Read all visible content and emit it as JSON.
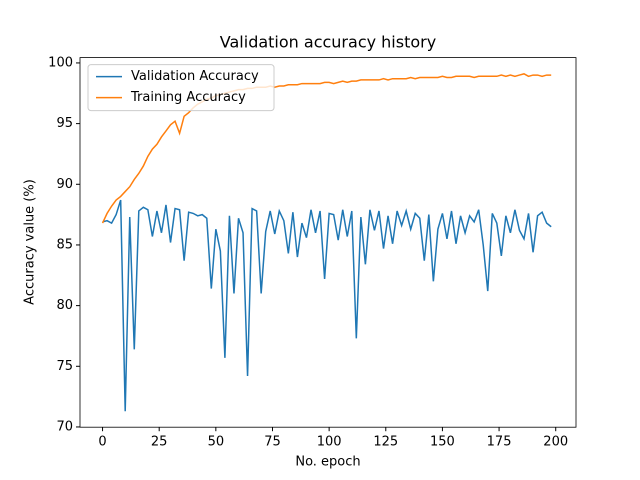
{
  "chart_data": {
    "type": "line",
    "title": "Validation accuracy history",
    "xlabel": "No. epoch",
    "ylabel": "Accuracy value (%)",
    "x": [
      0,
      2,
      4,
      6,
      8,
      10,
      12,
      14,
      16,
      18,
      20,
      22,
      24,
      26,
      28,
      30,
      32,
      34,
      36,
      38,
      40,
      42,
      44,
      46,
      48,
      50,
      52,
      54,
      56,
      58,
      60,
      62,
      64,
      66,
      68,
      70,
      72,
      74,
      76,
      78,
      80,
      82,
      84,
      86,
      88,
      90,
      92,
      94,
      96,
      98,
      100,
      102,
      104,
      106,
      108,
      110,
      112,
      114,
      116,
      118,
      120,
      122,
      124,
      126,
      128,
      130,
      132,
      134,
      136,
      138,
      140,
      142,
      144,
      146,
      148,
      150,
      152,
      154,
      156,
      158,
      160,
      162,
      164,
      166,
      168,
      170,
      172,
      174,
      176,
      178,
      180,
      182,
      184,
      186,
      188,
      190,
      192,
      194,
      196,
      198
    ],
    "series": [
      {
        "name": "Validation Accuracy",
        "color": "#1f77b4",
        "values": [
          86.9,
          87.0,
          86.8,
          87.5,
          88.7,
          71.3,
          87.3,
          76.4,
          87.8,
          88.1,
          87.9,
          85.7,
          87.8,
          86.0,
          88.3,
          85.2,
          88.0,
          87.9,
          83.7,
          87.7,
          87.6,
          87.4,
          87.5,
          87.2,
          81.4,
          86.3,
          84.5,
          75.7,
          87.4,
          81.0,
          87.2,
          86.0,
          74.2,
          88.0,
          87.8,
          81.0,
          86.1,
          87.8,
          85.9,
          87.8,
          87.0,
          84.3,
          87.7,
          84.0,
          86.8,
          85.6,
          87.9,
          86.0,
          87.8,
          82.2,
          87.6,
          87.5,
          85.4,
          87.9,
          85.7,
          87.8,
          77.3,
          87.3,
          83.4,
          87.9,
          86.2,
          87.8,
          84.7,
          87.4,
          85.1,
          87.8,
          86.6,
          87.8,
          86.3,
          87.6,
          87.2,
          83.7,
          87.5,
          82.0,
          86.3,
          87.6,
          85.5,
          87.8,
          85.1,
          87.4,
          86.0,
          87.4,
          86.9,
          87.9,
          85.0,
          81.2,
          87.6,
          86.8,
          84.1,
          87.4,
          86.0,
          87.9,
          86.2,
          85.5,
          87.6,
          84.4,
          87.4,
          87.7,
          86.8,
          86.5
        ]
      },
      {
        "name": "Training Accuracy",
        "color": "#ff7f0e",
        "values": [
          86.8,
          87.6,
          88.2,
          88.7,
          89.0,
          89.4,
          89.8,
          90.4,
          90.9,
          91.5,
          92.3,
          92.9,
          93.3,
          93.9,
          94.4,
          94.9,
          95.2,
          94.2,
          95.6,
          95.9,
          96.3,
          96.6,
          96.8,
          97.0,
          97.1,
          97.3,
          97.4,
          97.5,
          97.6,
          97.7,
          97.8,
          97.8,
          97.9,
          97.9,
          98.0,
          98.0,
          98.0,
          98.1,
          98.0,
          98.1,
          98.1,
          98.2,
          98.2,
          98.2,
          98.3,
          98.3,
          98.3,
          98.3,
          98.3,
          98.4,
          98.4,
          98.3,
          98.4,
          98.5,
          98.4,
          98.5,
          98.5,
          98.6,
          98.6,
          98.6,
          98.6,
          98.6,
          98.7,
          98.6,
          98.7,
          98.7,
          98.7,
          98.7,
          98.8,
          98.7,
          98.8,
          98.8,
          98.8,
          98.8,
          98.8,
          98.9,
          98.8,
          98.8,
          98.9,
          98.9,
          98.9,
          98.9,
          98.8,
          98.9,
          98.9,
          98.9,
          98.9,
          98.9,
          99.0,
          98.9,
          99.0,
          98.9,
          99.0,
          99.1,
          98.9,
          99.0,
          99.0,
          98.9,
          99.0,
          99.0
        ]
      }
    ],
    "xlim": [
      -9.95,
      208.95
    ],
    "xticks": [
      0,
      25,
      50,
      75,
      100,
      125,
      150,
      175,
      200
    ],
    "ylim": [
      69.98,
      100.44
    ],
    "yticks": [
      70,
      75,
      80,
      85,
      90,
      95,
      100
    ],
    "grid": false,
    "legend": "upper-left"
  }
}
